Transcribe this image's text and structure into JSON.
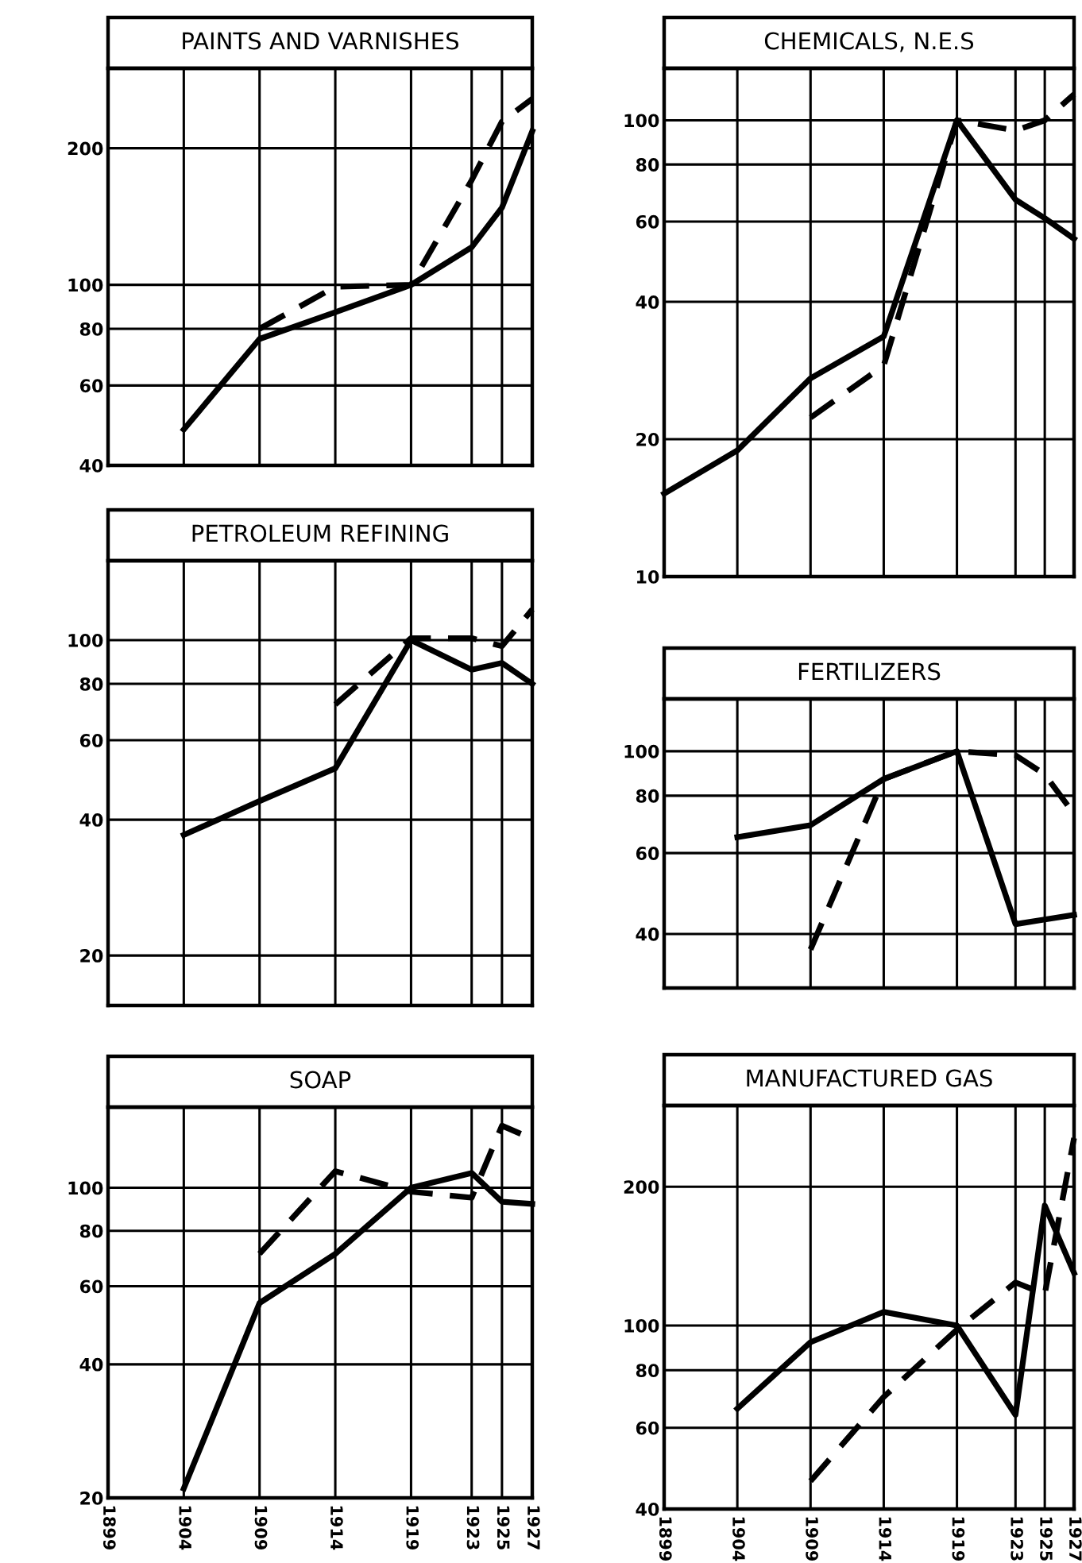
{
  "chart_data": [
    {
      "type": "line",
      "title": "PAINTS AND VARNISHES",
      "x": [
        1904,
        1909,
        1914,
        1919,
        1923,
        1925,
        1927
      ],
      "log": "y",
      "xlim": [
        1899,
        1927
      ],
      "xticks": [
        1899,
        1904,
        1909,
        1914,
        1919,
        1923,
        1925,
        1927
      ],
      "ylim": [
        40,
        300
      ],
      "yticks": [
        40,
        60,
        80,
        100,
        200
      ],
      "grid": true,
      "tick_labels": "y",
      "legend": false,
      "series": [
        {
          "color": "#000000",
          "line_style": "solid",
          "values": [
            48,
            76,
            87,
            100,
            121,
            148,
            218
          ]
        },
        {
          "color": "#000000",
          "line_style": "dashed",
          "values": [
            null,
            80,
            99,
            100,
            170,
            229,
            257
          ]
        }
      ]
    },
    {
      "type": "line",
      "title": "CHEMICALS, N.E.S",
      "x": [
        1899,
        1904,
        1909,
        1914,
        1919,
        1923,
        1925,
        1927
      ],
      "log": "y",
      "xlim": [
        1899,
        1927
      ],
      "xticks": [
        1899,
        1904,
        1909,
        1914,
        1919,
        1923,
        1925,
        1927
      ],
      "ylim": [
        10,
        130
      ],
      "yticks": [
        10,
        20,
        40,
        60,
        80,
        100
      ],
      "grid": true,
      "tick_labels": "y",
      "legend": false,
      "series": [
        {
          "color": "#000000",
          "line_style": "solid",
          "values": [
            15.2,
            18.9,
            27.2,
            33.6,
            100,
            67,
            61,
            55
          ]
        },
        {
          "color": "#000000",
          "line_style": "dashed",
          "values": [
            null,
            null,
            22.3,
            29,
            100,
            95,
            100,
            114
          ]
        }
      ]
    },
    {
      "type": "line",
      "title": "PETROLEUM REFINING",
      "x": [
        1904,
        1909,
        1914,
        1919,
        1923,
        1925,
        1927
      ],
      "log": "y",
      "xlim": [
        1899,
        1927
      ],
      "xticks": [
        1899,
        1904,
        1909,
        1914,
        1919,
        1923,
        1925,
        1927
      ],
      "ylim": [
        15.5,
        150
      ],
      "yticks": [
        20,
        40,
        60,
        80,
        100
      ],
      "grid": true,
      "tick_labels": "y",
      "legend": false,
      "series": [
        {
          "color": "#000000",
          "line_style": "solid",
          "values": [
            37,
            44,
            52,
            100,
            86,
            89,
            80
          ]
        },
        {
          "color": "#000000",
          "line_style": "dashed",
          "values": [
            null,
            null,
            72,
            101,
            101,
            97,
            117
          ]
        }
      ]
    },
    {
      "type": "line",
      "title": "FERTILIZERS",
      "x": [
        1904,
        1909,
        1914,
        1919,
        1923,
        1925,
        1927
      ],
      "log": "y",
      "xlim": [
        1899,
        1927
      ],
      "xticks": [
        1899,
        1904,
        1909,
        1914,
        1919,
        1923,
        1925,
        1927
      ],
      "ylim": [
        30.5,
        130
      ],
      "yticks": [
        40,
        60,
        80,
        100
      ],
      "grid": true,
      "tick_labels": "y",
      "legend": false,
      "series": [
        {
          "color": "#000000",
          "line_style": "solid",
          "values": [
            65,
            69,
            87,
            100,
            42,
            43,
            44
          ]
        },
        {
          "color": "#000000",
          "line_style": "dashed",
          "values": [
            null,
            37,
            87,
            100,
            98,
            89,
            73
          ]
        }
      ]
    },
    {
      "type": "line",
      "title": "SOAP",
      "x": [
        1904,
        1909,
        1914,
        1919,
        1923,
        1925,
        1927
      ],
      "log": "y",
      "xlim": [
        1899,
        1927
      ],
      "xticks": [
        1899,
        1904,
        1909,
        1914,
        1919,
        1923,
        1925,
        1927
      ],
      "ylim": [
        20,
        152
      ],
      "yticks": [
        20,
        40,
        60,
        80,
        100
      ],
      "grid": true,
      "legend": false,
      "series": [
        {
          "color": "#000000",
          "line_style": "solid",
          "values": [
            21,
            55,
            71,
            100,
            108,
            93,
            92
          ]
        },
        {
          "color": "#000000",
          "line_style": "dashed",
          "values": [
            null,
            71,
            109,
            98,
            95,
            138,
            129
          ]
        }
      ]
    },
    {
      "type": "line",
      "title": "MANUFACTURED GAS",
      "x": [
        1904,
        1909,
        1914,
        1919,
        1923,
        1925,
        1927
      ],
      "log": "y",
      "xlim": [
        1899,
        1927
      ],
      "xticks": [
        1899,
        1904,
        1909,
        1914,
        1919,
        1923,
        1925,
        1927
      ],
      "ylim": [
        40,
        300
      ],
      "yticks": [
        40,
        60,
        80,
        100,
        200
      ],
      "grid": true,
      "legend": false,
      "series": [
        {
          "color": "#000000",
          "line_style": "solid",
          "values": [
            66,
            92,
            107,
            100,
            64,
            182,
            130
          ]
        },
        {
          "color": "#000000",
          "line_style": "dashed",
          "values": [
            null,
            46,
            70,
            98,
            124,
            117,
            255
          ]
        }
      ]
    }
  ]
}
